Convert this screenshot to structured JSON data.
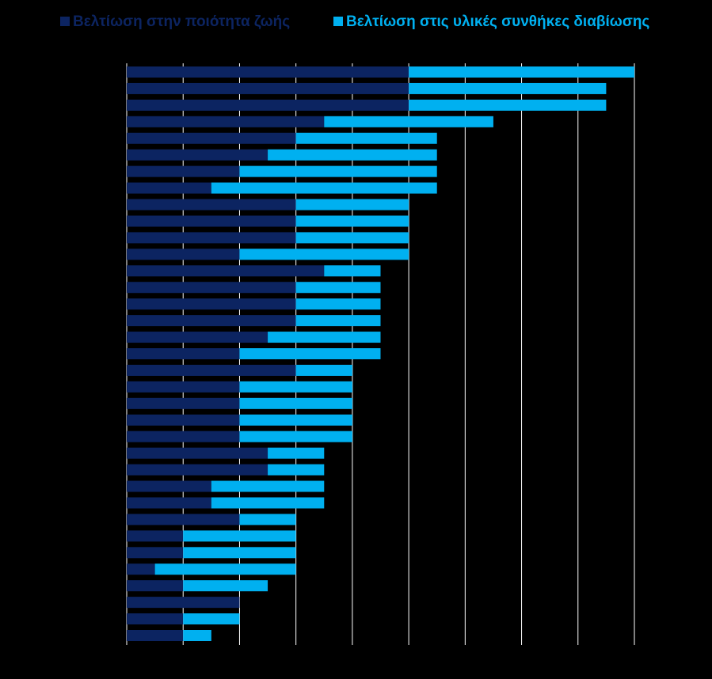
{
  "chart_data": {
    "type": "stacked-bar",
    "orientation": "horizontal",
    "categories": [
      null,
      null,
      null,
      null,
      null,
      null,
      null,
      null,
      null,
      null,
      null,
      null,
      null,
      null,
      null,
      null,
      null,
      null,
      null,
      null,
      null,
      null,
      null,
      null,
      null,
      null,
      null,
      null,
      null,
      null,
      null,
      null,
      null,
      null,
      null
    ],
    "series": [
      {
        "name": "Βελτίωση στην ποιότητα ζωής",
        "color": "#0c2461",
        "values": [
          5,
          5,
          5,
          3.5,
          3,
          2.5,
          2,
          1.5,
          3,
          3,
          3,
          2,
          3.5,
          3,
          3,
          3,
          2.5,
          2,
          3,
          2,
          2,
          2,
          2,
          2.5,
          2.5,
          1.5,
          1.5,
          2,
          1,
          1,
          0.5,
          1,
          2,
          1,
          1
        ]
      },
      {
        "name": "Βελτίωση στις υλικές συνθήκες διαβίωσης",
        "color": "#00b0f0",
        "values": [
          4,
          3.5,
          3.5,
          3,
          2.5,
          3,
          3.5,
          4,
          2,
          2,
          2,
          3,
          1,
          1.5,
          1.5,
          1.5,
          2,
          2.5,
          1,
          2,
          2,
          2,
          2,
          1,
          1,
          2,
          2,
          1,
          2,
          2,
          2.5,
          1.5,
          0,
          1,
          0.5
        ]
      }
    ],
    "xlim": [
      0,
      9
    ],
    "xticks": [
      0,
      1,
      2,
      3,
      4,
      5,
      6,
      7,
      8,
      9
    ],
    "grid": true,
    "legend": "top"
  }
}
